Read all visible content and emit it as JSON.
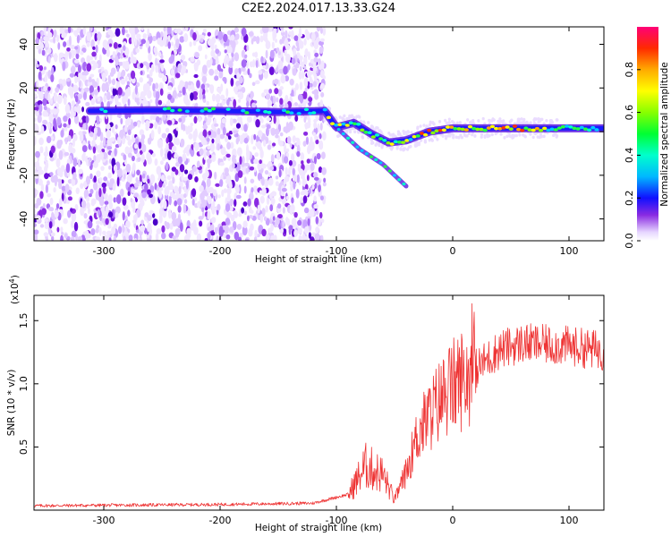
{
  "title": "C2E2.2024.017.13.33.G24",
  "chart_data": [
    {
      "type": "heatmap",
      "name": "spectrogram",
      "xlabel": "Height of straight line (km)",
      "ylabel": "Frequency (Hz)",
      "xlim": [
        -360,
        130
      ],
      "ylim": [
        -50,
        48
      ],
      "xticks": [
        -300,
        -200,
        -100,
        0,
        100
      ],
      "xtick_labels": [
        "-300",
        "-200",
        "-100",
        "0",
        "100"
      ],
      "yticks": [
        -40,
        -20,
        0,
        20,
        40
      ],
      "ytick_labels": [
        "-40",
        "-20",
        "0",
        "20",
        "40"
      ],
      "colorbar": {
        "label": "Normalized spectral amplitude",
        "range": [
          0,
          1
        ],
        "ticks": [
          0.0,
          0.2,
          0.4,
          0.6,
          0.8
        ],
        "tick_labels": [
          "0.0",
          "0.2",
          "0.4",
          "0.6",
          "0.8"
        ]
      },
      "noise_region_x": [
        -360,
        -110
      ],
      "signal_trace": [
        {
          "x": -310,
          "y": 9.5
        },
        {
          "x": -250,
          "y": 9.8
        },
        {
          "x": -200,
          "y": 9.5
        },
        {
          "x": -150,
          "y": 9.0
        },
        {
          "x": -110,
          "y": 9.5
        },
        {
          "x": -100,
          "y": 2.0
        },
        {
          "x": -85,
          "y": 4.0
        },
        {
          "x": -70,
          "y": -1.0
        },
        {
          "x": -55,
          "y": -5.0
        },
        {
          "x": -40,
          "y": -4.0
        },
        {
          "x": -20,
          "y": 0.0
        },
        {
          "x": 0,
          "y": 1.5
        },
        {
          "x": 50,
          "y": 1.5
        },
        {
          "x": 130,
          "y": 1.5
        }
      ],
      "secondary_trace": [
        {
          "x": -100,
          "y": 2.0
        },
        {
          "x": -80,
          "y": -8.0
        },
        {
          "x": -60,
          "y": -15.0
        },
        {
          "x": -40,
          "y": -25.0
        }
      ]
    },
    {
      "type": "line",
      "name": "snr",
      "xlabel": "Height of straight line (km)",
      "ylabel": "SNR (10 * v/v)",
      "scale_label": "(x10",
      "scale_exponent": "4",
      "xlim": [
        -360,
        130
      ],
      "ylim": [
        0,
        1.7
      ],
      "xticks": [
        -300,
        -200,
        -100,
        0,
        100
      ],
      "xtick_labels": [
        "-300",
        "-200",
        "-100",
        "0",
        "100"
      ],
      "yticks": [
        0.5,
        1.0,
        1.5
      ],
      "ytick_labels": [
        "0.5",
        "1.0",
        "1.5"
      ],
      "color": "#ee3333",
      "series_envelope": [
        {
          "x": -360,
          "y": 0.03
        },
        {
          "x": -200,
          "y": 0.04
        },
        {
          "x": -120,
          "y": 0.05
        },
        {
          "x": -90,
          "y": 0.12
        },
        {
          "x": -75,
          "y": 0.35
        },
        {
          "x": -60,
          "y": 0.28
        },
        {
          "x": -50,
          "y": 0.08
        },
        {
          "x": -40,
          "y": 0.3
        },
        {
          "x": -30,
          "y": 0.6
        },
        {
          "x": -20,
          "y": 0.75
        },
        {
          "x": -10,
          "y": 0.88
        },
        {
          "x": 0,
          "y": 0.98
        },
        {
          "x": 20,
          "y": 1.12
        },
        {
          "x": 40,
          "y": 1.27
        },
        {
          "x": 60,
          "y": 1.32
        },
        {
          "x": 80,
          "y": 1.31
        },
        {
          "x": 100,
          "y": 1.3
        },
        {
          "x": 130,
          "y": 1.26
        }
      ]
    }
  ]
}
